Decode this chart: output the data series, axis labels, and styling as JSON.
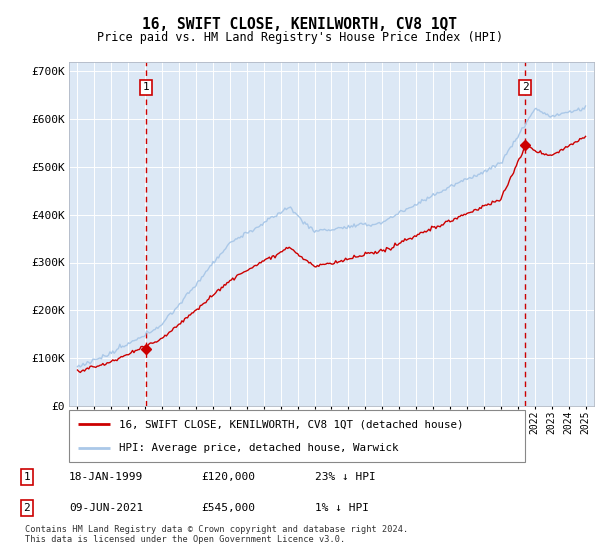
{
  "title": "16, SWIFT CLOSE, KENILWORTH, CV8 1QT",
  "subtitle": "Price paid vs. HM Land Registry's House Price Index (HPI)",
  "legend_line1": "16, SWIFT CLOSE, KENILWORTH, CV8 1QT (detached house)",
  "legend_line2": "HPI: Average price, detached house, Warwick",
  "footnote": "Contains HM Land Registry data © Crown copyright and database right 2024.\nThis data is licensed under the Open Government Licence v3.0.",
  "sale1_label": "1",
  "sale1_date": "18-JAN-1999",
  "sale1_price": "£120,000",
  "sale1_hpi": "23% ↓ HPI",
  "sale2_label": "2",
  "sale2_date": "09-JUN-2021",
  "sale2_price": "£545,000",
  "sale2_hpi": "1% ↓ HPI",
  "sale1_x": 1999.05,
  "sale1_y": 120000,
  "sale2_x": 2021.44,
  "sale2_y": 545000,
  "ylim": [
    0,
    720000
  ],
  "xlim_left": 1994.5,
  "xlim_right": 2025.5,
  "hpi_color": "#aac8e8",
  "price_color": "#cc0000",
  "dot_color": "#cc0000",
  "background_color": "#dce8f5",
  "plot_bg": "#dce8f5",
  "grid_color": "#ffffff",
  "sale_vline_color": "#cc0000",
  "marker_box_color": "#cc0000",
  "yticks": [
    0,
    100000,
    200000,
    300000,
    400000,
    500000,
    600000,
    700000
  ],
  "ylabels": [
    "£0",
    "£100K",
    "£200K",
    "£300K",
    "£400K",
    "£500K",
    "£600K",
    "£700K"
  ],
  "xticks_start": 1995,
  "xticks_end": 2025
}
